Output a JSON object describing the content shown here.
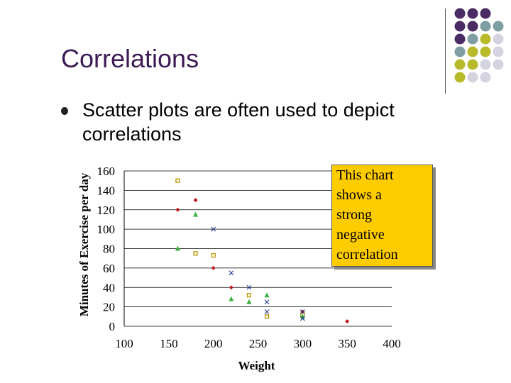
{
  "slide": {
    "title": "Correlations",
    "bullet": "Scatter plots are often used to depict correlations",
    "callout": [
      "This chart",
      "shows a",
      "strong",
      "negative",
      "correlation"
    ]
  },
  "colors": {
    "title": "#3b1a55",
    "callout_bg": "#ffcc00",
    "plum": "#4b2b63",
    "teal": "#7f9ea3",
    "olive": "#b8ba2a",
    "lavender": "#d6d3e0"
  },
  "chart_data": {
    "type": "scatter",
    "title": "",
    "xlabel": "Weight",
    "ylabel": "Minutes of Exercise per day",
    "xlim": [
      100,
      400
    ],
    "ylim": [
      0,
      160
    ],
    "xticks": [
      100,
      150,
      200,
      250,
      300,
      350,
      400
    ],
    "yticks": [
      0,
      20,
      40,
      60,
      80,
      100,
      120,
      140,
      160
    ],
    "grid": true,
    "series": [
      {
        "name": "series-square",
        "marker": "square",
        "color": "#b38f00",
        "points": [
          [
            160,
            150
          ],
          [
            180,
            75
          ],
          [
            200,
            73
          ],
          [
            240,
            32
          ],
          [
            260,
            10
          ],
          [
            300,
            12
          ]
        ]
      },
      {
        "name": "series-diamond",
        "marker": "diamond",
        "color": "#c0181e",
        "points": [
          [
            160,
            120
          ],
          [
            180,
            130
          ],
          [
            200,
            60
          ],
          [
            220,
            40
          ],
          [
            300,
            15
          ],
          [
            350,
            5
          ]
        ]
      },
      {
        "name": "series-triangle",
        "marker": "triangle",
        "color": "#3cb043",
        "points": [
          [
            160,
            80
          ],
          [
            180,
            115
          ],
          [
            220,
            28
          ],
          [
            240,
            25
          ],
          [
            260,
            32
          ],
          [
            300,
            10
          ]
        ]
      },
      {
        "name": "series-x",
        "marker": "x",
        "color": "#1f3d8a",
        "points": [
          [
            200,
            100
          ],
          [
            220,
            55
          ],
          [
            240,
            40
          ],
          [
            260,
            25
          ],
          [
            260,
            15
          ],
          [
            300,
            8
          ],
          [
            300,
            15
          ]
        ]
      }
    ]
  }
}
